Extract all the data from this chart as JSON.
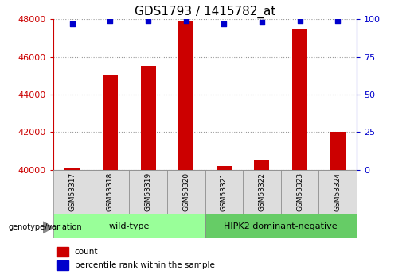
{
  "title": "GDS1793 / 1415782_at",
  "categories": [
    "GSM53317",
    "GSM53318",
    "GSM53319",
    "GSM53320",
    "GSM53321",
    "GSM53322",
    "GSM53323",
    "GSM53324"
  ],
  "count_values": [
    40100,
    45000,
    45500,
    47900,
    40200,
    40500,
    47500,
    42000
  ],
  "percentile_values": [
    97,
    99,
    99,
    99,
    97,
    98,
    99,
    99
  ],
  "ylim_left": [
    40000,
    48000
  ],
  "ylim_right": [
    0,
    100
  ],
  "yticks_left": [
    40000,
    42000,
    44000,
    46000,
    48000
  ],
  "yticks_right": [
    0,
    25,
    50,
    75,
    100
  ],
  "left_tick_color": "#cc0000",
  "right_tick_color": "#0000cc",
  "bar_color": "#cc0000",
  "dot_color": "#0000cc",
  "grid_color": "#000000",
  "group1_label": "wild-type",
  "group2_label": "HIPK2 dominant-negative",
  "group1_indices": [
    0,
    1,
    2,
    3
  ],
  "group2_indices": [
    4,
    5,
    6,
    7
  ],
  "group1_color": "#99ff99",
  "group2_color": "#66cc66",
  "xlabel_group": "genotype/variation",
  "legend_count_label": "count",
  "legend_pct_label": "percentile rank within the sample",
  "bar_width": 0.4,
  "bg_color": "#ffffff"
}
